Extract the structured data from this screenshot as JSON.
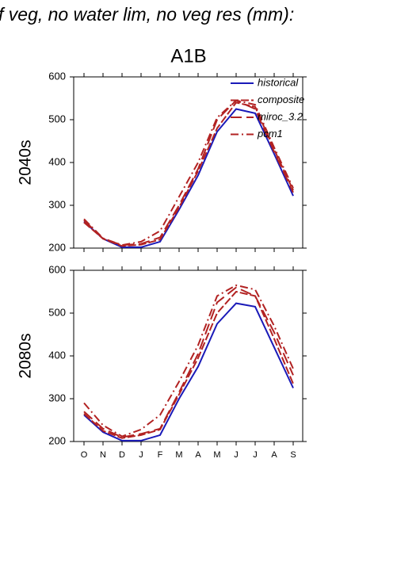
{
  "header": {
    "title": "f veg, no water lim, no veg res (mm):",
    "subtitle": "A1B"
  },
  "chart_data": [
    {
      "type": "line",
      "ylabel": "2040s",
      "categories": [
        "O",
        "N",
        "D",
        "J",
        "F",
        "M",
        "A",
        "M",
        "J",
        "J",
        "A",
        "S"
      ],
      "ylim": [
        200,
        600
      ],
      "yticks": [
        200,
        300,
        400,
        500,
        600
      ],
      "legend": "top-right",
      "series": [
        {
          "name": "historical",
          "color": "#1a1ab8",
          "dash": "none",
          "values": [
            262,
            222,
            202,
            202,
            215,
            290,
            370,
            472,
            525,
            515,
            420,
            322
          ]
        },
        {
          "name": "composite",
          "color": "#b22222",
          "dash": "10,3",
          "values": [
            260,
            222,
            205,
            208,
            220,
            295,
            380,
            480,
            540,
            530,
            430,
            335
          ]
        },
        {
          "name": "miroc_3.2",
          "color": "#b22222",
          "dash": "14,6",
          "values": [
            265,
            222,
            207,
            210,
            225,
            300,
            385,
            500,
            545,
            525,
            425,
            330
          ]
        },
        {
          "name": "pcm1",
          "color": "#b22222",
          "dash": "10,4,2,4",
          "values": [
            268,
            223,
            207,
            215,
            240,
            320,
            400,
            505,
            545,
            535,
            435,
            340
          ]
        }
      ]
    },
    {
      "type": "line",
      "ylabel": "2080s",
      "categories": [
        "O",
        "N",
        "D",
        "J",
        "F",
        "M",
        "A",
        "M",
        "J",
        "J",
        "A",
        "S"
      ],
      "ylim": [
        200,
        600
      ],
      "yticks": [
        200,
        300,
        400,
        500,
        600
      ],
      "series": [
        {
          "color": "#1a1ab8",
          "dash": "none",
          "values": [
            262,
            222,
            202,
            202,
            215,
            300,
            375,
            475,
            523,
            515,
            420,
            325
          ]
        },
        {
          "color": "#b22222",
          "dash": "10,3",
          "values": [
            265,
            225,
            208,
            215,
            228,
            310,
            395,
            500,
            550,
            540,
            440,
            335
          ]
        },
        {
          "color": "#b22222",
          "dash": "14,6",
          "values": [
            270,
            230,
            210,
            218,
            230,
            315,
            405,
            525,
            560,
            540,
            455,
            355
          ]
        },
        {
          "color": "#b22222",
          "dash": "10,4,2,4",
          "values": [
            290,
            238,
            212,
            228,
            262,
            340,
            425,
            540,
            565,
            555,
            470,
            370
          ]
        }
      ]
    }
  ]
}
